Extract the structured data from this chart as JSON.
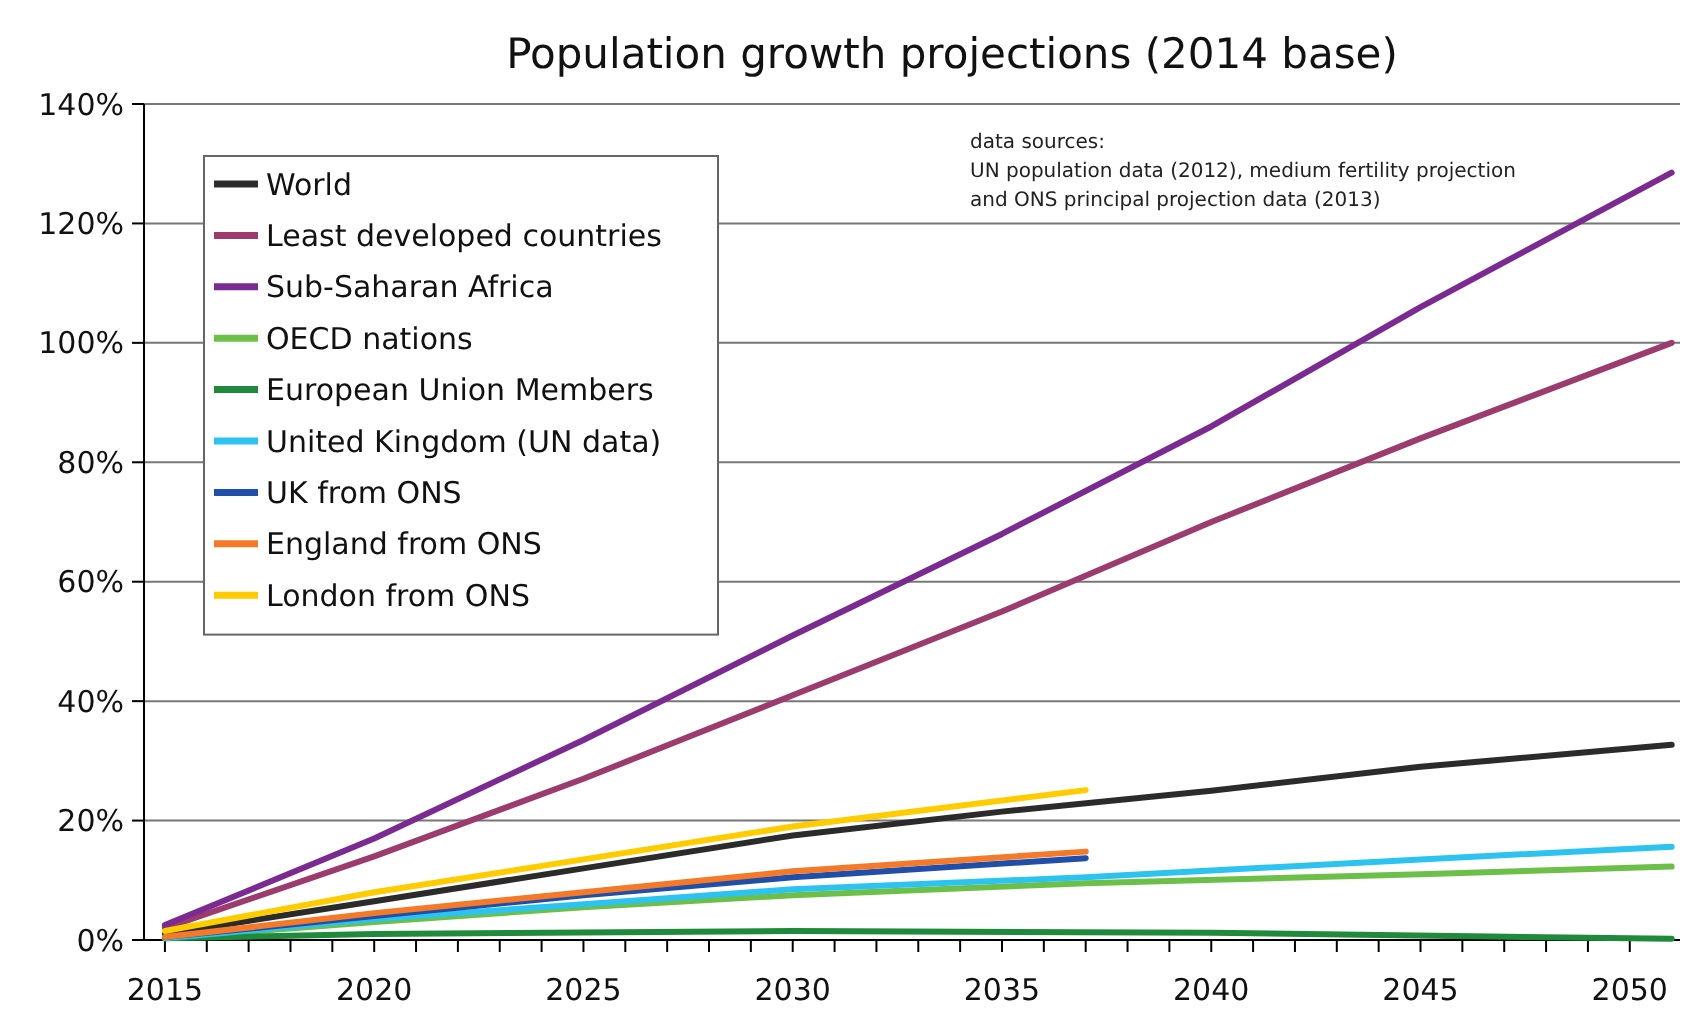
{
  "chart_data": {
    "type": "line",
    "title": "Population growth projections (2014 base)",
    "annotations": [
      "data  sources:",
      "UN population data (2012), medium fertility projection",
      "and ONS principal projection data (2013)"
    ],
    "xlim": [
      2014.5,
      2051.2
    ],
    "xticks": [
      {
        "value": 2015,
        "label": "2015"
      },
      {
        "value": 2016,
        "label": null
      },
      {
        "value": 2017,
        "label": null
      },
      {
        "value": 2018,
        "label": null
      },
      {
        "value": 2019,
        "label": null
      },
      {
        "value": 2020,
        "label": "2020"
      },
      {
        "value": 2021,
        "label": null
      },
      {
        "value": 2022,
        "label": null
      },
      {
        "value": 2023,
        "label": null
      },
      {
        "value": 2024,
        "label": null
      },
      {
        "value": 2025,
        "label": "2025"
      },
      {
        "value": 2026,
        "label": null
      },
      {
        "value": 2027,
        "label": null
      },
      {
        "value": 2028,
        "label": null
      },
      {
        "value": 2029,
        "label": null
      },
      {
        "value": 2030,
        "label": "2030"
      },
      {
        "value": 2031,
        "label": null
      },
      {
        "value": 2032,
        "label": null
      },
      {
        "value": 2033,
        "label": null
      },
      {
        "value": 2034,
        "label": null
      },
      {
        "value": 2035,
        "label": "2035"
      },
      {
        "value": 2036,
        "label": null
      },
      {
        "value": 2037,
        "label": null
      },
      {
        "value": 2038,
        "label": null
      },
      {
        "value": 2039,
        "label": null
      },
      {
        "value": 2040,
        "label": "2040"
      },
      {
        "value": 2041,
        "label": null
      },
      {
        "value": 2042,
        "label": null
      },
      {
        "value": 2043,
        "label": null
      },
      {
        "value": 2044,
        "label": null
      },
      {
        "value": 2045,
        "label": "2045"
      },
      {
        "value": 2046,
        "label": null
      },
      {
        "value": 2047,
        "label": null
      },
      {
        "value": 2048,
        "label": null
      },
      {
        "value": 2049,
        "label": null
      },
      {
        "value": 2050,
        "label": "2050"
      }
    ],
    "ylim": [
      0,
      140
    ],
    "yticks": [
      {
        "value": 0,
        "label": "0%"
      },
      {
        "value": 20,
        "label": "20%"
      },
      {
        "value": 40,
        "label": "40%"
      },
      {
        "value": 60,
        "label": "60%"
      },
      {
        "value": 80,
        "label": "80%"
      },
      {
        "value": 100,
        "label": "100%"
      },
      {
        "value": 120,
        "label": "120%"
      },
      {
        "value": 140,
        "label": "140%"
      }
    ],
    "grid": "y",
    "legend": "top left",
    "marker": "none",
    "line_style": "solid",
    "series": [
      {
        "name": "World",
        "color": "#2b2b2b",
        "x": [
          2015,
          2020,
          2025,
          2030,
          2035,
          2040,
          2045,
          2051
        ],
        "values": [
          1,
          6.5,
          12,
          17.5,
          21.5,
          25,
          29,
          32.7
        ]
      },
      {
        "name": "Least developed countries",
        "color": "#9b3b6e",
        "x": [
          2015,
          2020,
          2025,
          2030,
          2035,
          2040,
          2045,
          2051
        ],
        "values": [
          2,
          14,
          27,
          41,
          55,
          70,
          84,
          100
        ]
      },
      {
        "name": "Sub-Saharan Africa",
        "color": "#7b2a91",
        "x": [
          2015,
          2020,
          2025,
          2030,
          2035,
          2040,
          2045,
          2051
        ],
        "values": [
          2.5,
          17,
          33.5,
          51,
          68,
          86,
          106,
          128.5
        ]
      },
      {
        "name": "OECD nations",
        "color": "#6cc04a",
        "x": [
          2015,
          2020,
          2025,
          2030,
          2037,
          2045,
          2051
        ],
        "values": [
          0.3,
          3,
          5.5,
          7.5,
          9.5,
          11,
          12.3
        ]
      },
      {
        "name": "European Union Members",
        "color": "#1f8a3c",
        "x": [
          2015,
          2020,
          2030,
          2040,
          2051
        ],
        "values": [
          0.3,
          1,
          1.5,
          1.2,
          0.2
        ]
      },
      {
        "name": "United Kingdom (UN data)",
        "color": "#2dc3f0",
        "x": [
          2015,
          2020,
          2025,
          2030,
          2037,
          2045,
          2051
        ],
        "values": [
          0.3,
          3.5,
          6,
          8.5,
          10.5,
          13.5,
          15.6
        ]
      },
      {
        "name": "UK from ONS",
        "color": "#1f4fa8",
        "x": [
          2015,
          2020,
          2025,
          2030,
          2037
        ],
        "values": [
          0.5,
          4,
          7.5,
          10.5,
          13.7
        ]
      },
      {
        "name": "England from ONS",
        "color": "#f47a2a",
        "x": [
          2015,
          2020,
          2025,
          2030,
          2037
        ],
        "values": [
          0.5,
          4.5,
          8,
          11.5,
          14.8
        ]
      },
      {
        "name": "London from ONS",
        "color": "#ffcc00",
        "x": [
          2015,
          2020,
          2025,
          2030,
          2037
        ],
        "values": [
          1.5,
          8,
          13.5,
          19,
          25.1
        ]
      }
    ]
  }
}
